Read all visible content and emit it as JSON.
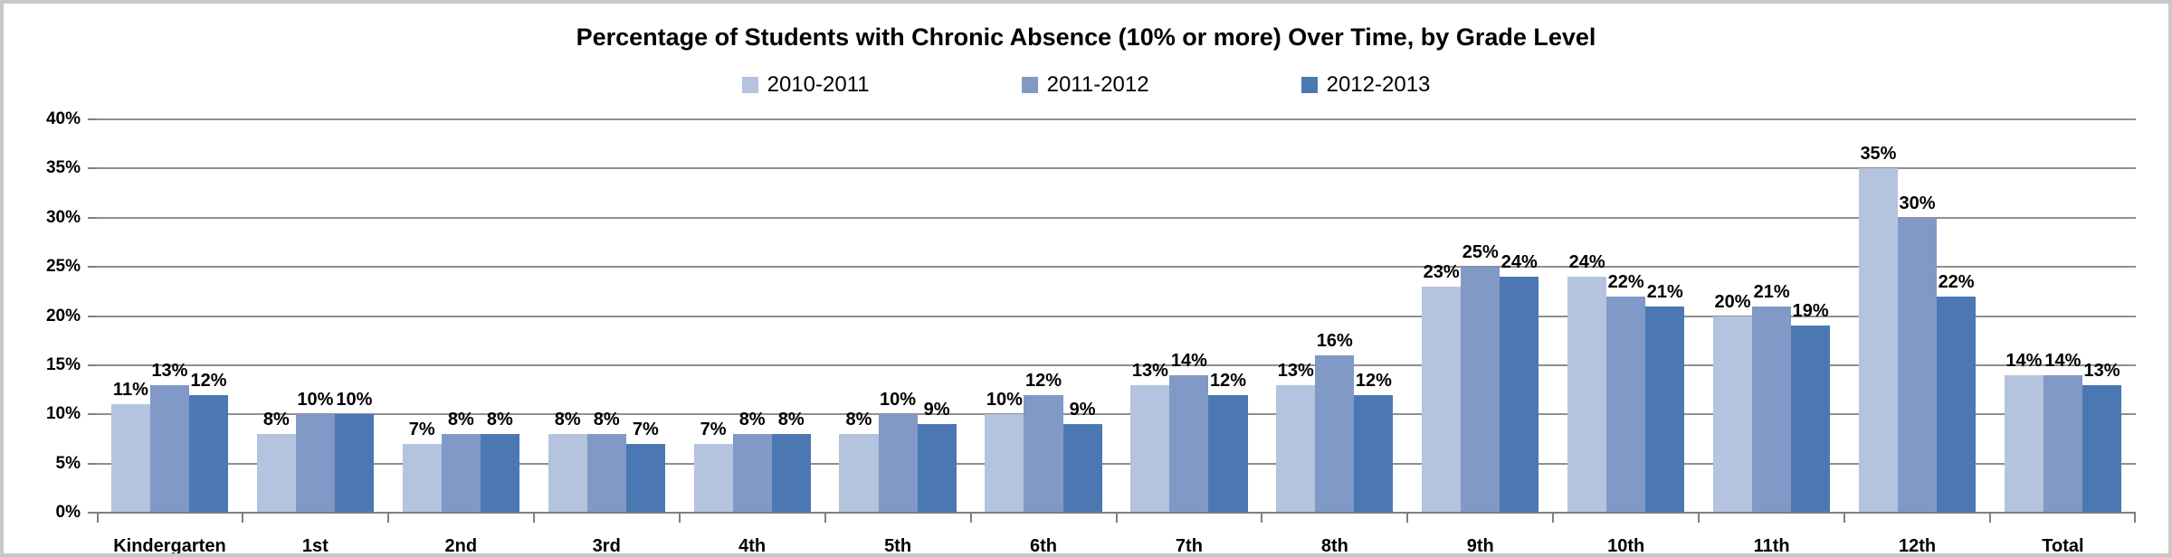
{
  "chart_data": {
    "type": "bar",
    "title": "Percentage of Students with Chronic Absence (10% or more) Over Time, by Grade Level",
    "xlabel": "",
    "ylabel": "",
    "ylim": [
      0,
      40
    ],
    "grid": true,
    "legend_position": "top",
    "value_suffix": "%",
    "yticks": [
      0,
      5,
      10,
      15,
      20,
      25,
      30,
      35,
      40
    ],
    "ytick_labels": [
      "0%",
      "5%",
      "10%",
      "15%",
      "20%",
      "25%",
      "30%",
      "35%",
      "40%"
    ],
    "categories": [
      "Kindergarten",
      "1st",
      "2nd",
      "3rd",
      "4th",
      "5th",
      "6th",
      "7th",
      "8th",
      "9th",
      "10th",
      "11th",
      "12th",
      "Total"
    ],
    "series": [
      {
        "name": "2010-2011",
        "color": "#b4c3de",
        "values": [
          11,
          8,
          7,
          8,
          7,
          8,
          10,
          13,
          13,
          23,
          24,
          20,
          35,
          14
        ]
      },
      {
        "name": "2011-2012",
        "color": "#8099c7",
        "values": [
          13,
          10,
          8,
          8,
          8,
          10,
          12,
          14,
          16,
          25,
          22,
          21,
          30,
          14
        ]
      },
      {
        "name": "2012-2013",
        "color": "#4b78b2",
        "values": [
          12,
          10,
          8,
          7,
          8,
          9,
          9,
          12,
          12,
          24,
          21,
          19,
          22,
          13
        ]
      }
    ],
    "colors": {
      "gridline": "#8f8f8f",
      "axis": "#7f7f7f",
      "frame_border": "#c8c8c8",
      "text": "#000000"
    }
  }
}
